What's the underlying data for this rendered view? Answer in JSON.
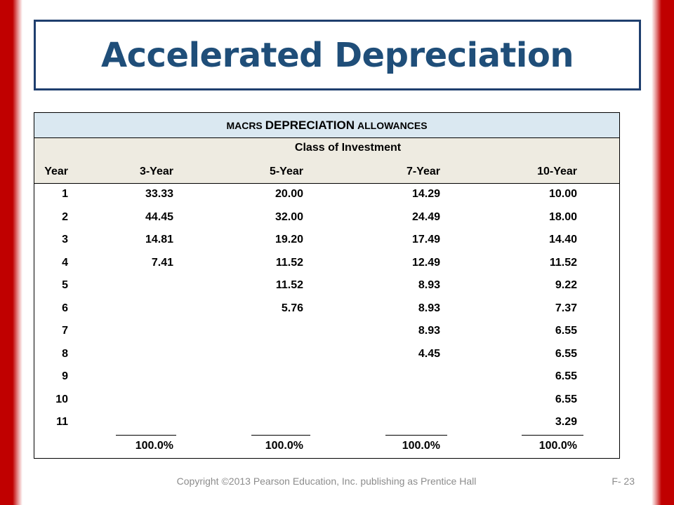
{
  "slide": {
    "title": "Accelerated Depreciation",
    "footer": "Copyright ©2013 Pearson Education, Inc. publishing as Prentice Hall",
    "page_number": "F- 23",
    "accent_color": "#c00000",
    "title_color": "#1f4e79"
  },
  "table": {
    "header_parts": [
      "MACRS",
      "DEPRECIATION",
      "ALLOWANCES"
    ],
    "class_label": "Class of Investment",
    "columns": [
      "Year",
      "3-Year",
      "5-Year",
      "7-Year",
      "10-Year"
    ],
    "rows": [
      [
        "1",
        "33.33",
        "20.00",
        "14.29",
        "10.00"
      ],
      [
        "2",
        "44.45",
        "32.00",
        "24.49",
        "18.00"
      ],
      [
        "3",
        "14.81",
        "19.20",
        "17.49",
        "14.40"
      ],
      [
        "4",
        "7.41",
        "11.52",
        "12.49",
        "11.52"
      ],
      [
        "5",
        "",
        "11.52",
        "8.93",
        "9.22"
      ],
      [
        "6",
        "",
        "5.76",
        "8.93",
        "7.37"
      ],
      [
        "7",
        "",
        "",
        "8.93",
        "6.55"
      ],
      [
        "8",
        "",
        "",
        "4.45",
        "6.55"
      ],
      [
        "9",
        "",
        "",
        "",
        "6.55"
      ],
      [
        "10",
        "",
        "",
        "",
        "6.55"
      ],
      [
        "11",
        "",
        "",
        "",
        "3.29"
      ]
    ],
    "totals": [
      "",
      "100.0%",
      "100.0%",
      "100.0%",
      "100.0%"
    ]
  }
}
